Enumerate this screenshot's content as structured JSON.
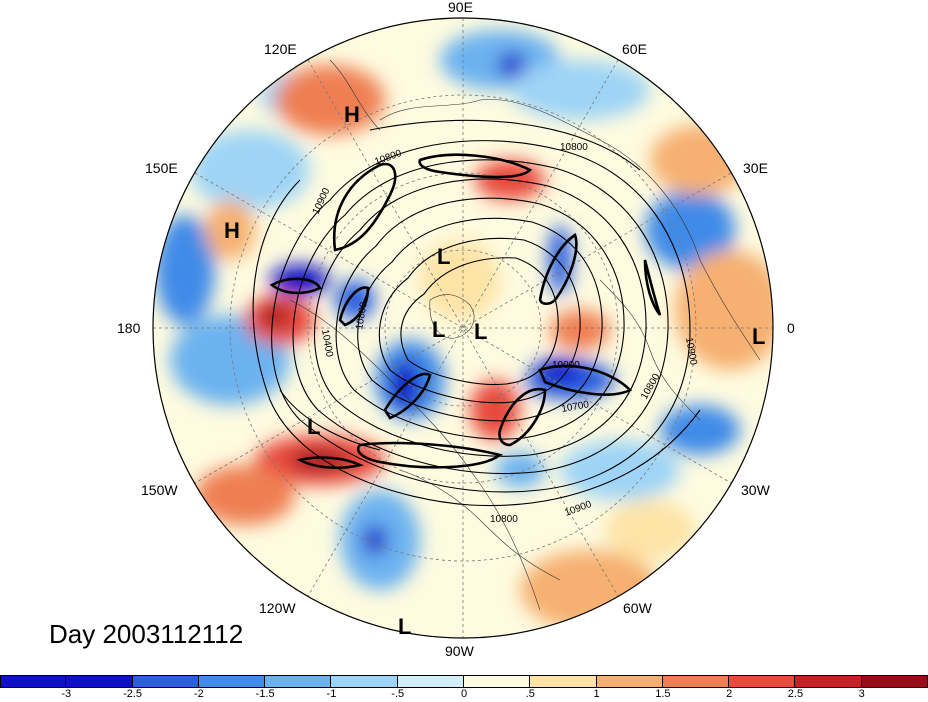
{
  "title": "Day 2003112112",
  "longitude_labels": {
    "n90e": "90E",
    "n120e": "120E",
    "n60e": "60E",
    "n150e": "150E",
    "n30e": "30E",
    "n180": "180",
    "n0": "0",
    "n150w": "150W",
    "n30w": "30W",
    "n120w": "120W",
    "n60w": "60W",
    "n90w": "90W"
  },
  "pressure_centers": [
    "H",
    "H",
    "L",
    "L",
    "L",
    "L",
    "L",
    "L"
  ],
  "contour_labels": [
    "10800",
    "10900",
    "10400",
    "10800",
    "10000",
    "10700",
    "10800",
    "10900",
    "10800",
    "10900",
    "10800"
  ],
  "colorbar": {
    "ticks": [
      "-3",
      "-2.5",
      "-2",
      "-1.5",
      "-1",
      "-.5",
      "0",
      ".5",
      "1",
      "1.5",
      "2",
      "2.5",
      "3"
    ],
    "colors": [
      "#1010c8",
      "#2c5fe0",
      "#3f8be8",
      "#6cb2f0",
      "#9fd4f6",
      "#d2eefa",
      "#fefbe0",
      "#fde3a6",
      "#f6b071",
      "#ef7f52",
      "#e84a3c",
      "#c81e28",
      "#9a0a1a"
    ]
  }
}
